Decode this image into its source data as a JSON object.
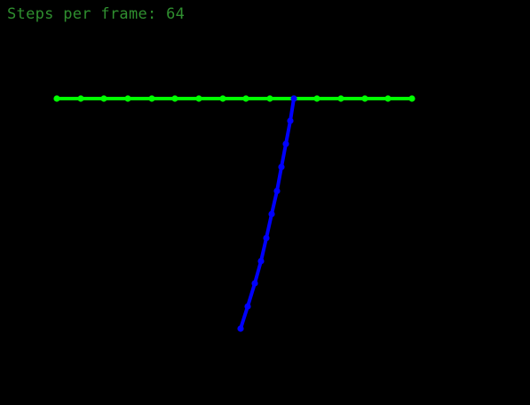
{
  "hud": {
    "label": "Steps per frame: 64",
    "color": "#2f8f2f"
  },
  "scene": {
    "background": "#000000",
    "ropes": [
      {
        "name": "green-rope",
        "color": "#00ff00",
        "node_count": 16
      },
      {
        "name": "blue-rope",
        "color": "#0000ff",
        "node_count": 11
      }
    ]
  }
}
